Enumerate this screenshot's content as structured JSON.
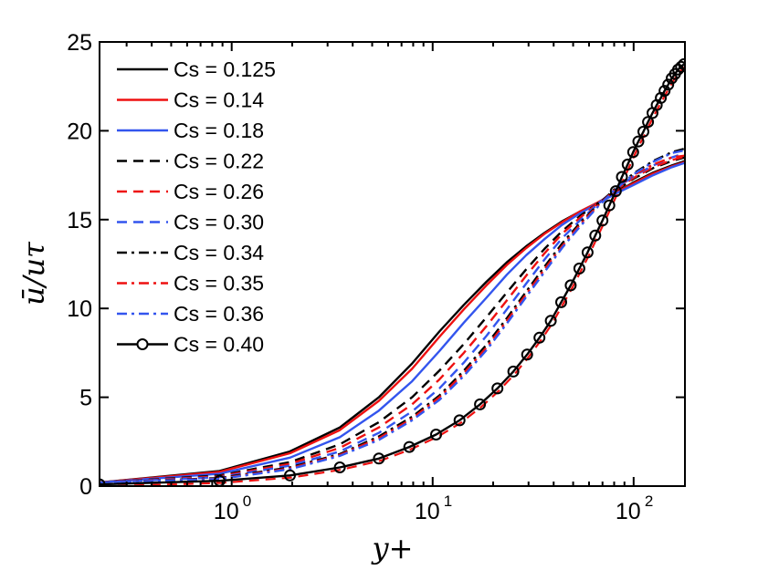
{
  "chart_data": {
    "type": "line",
    "title": "",
    "xlabel": "y+",
    "ylabel": "ū/uτ",
    "x_scale": "log",
    "xlim": [
      0.22,
      180
    ],
    "ylim": [
      0,
      25
    ],
    "yticks": [
      "0",
      "5",
      "10",
      "15",
      "20",
      "25"
    ],
    "xticks": [
      {
        "value": 1,
        "base": "10",
        "exp": "0"
      },
      {
        "value": 10,
        "base": "10",
        "exp": "1"
      },
      {
        "value": 100,
        "base": "10",
        "exp": "2"
      }
    ],
    "grid": false,
    "legend_position": "top-left",
    "series": [
      {
        "name": "Cs = 0.125",
        "color": "#000000",
        "style": "solid",
        "marker": "none",
        "x": [
          0.22,
          0.87,
          1.95,
          3.45,
          5.4,
          7.9,
          10.8,
          14.3,
          18.5,
          23.4,
          29.2,
          36,
          44,
          54,
          66,
          81,
          100,
          125,
          155,
          180
        ],
        "y": [
          0.2,
          0.85,
          1.95,
          3.3,
          5.0,
          6.9,
          8.7,
          10.2,
          11.5,
          12.6,
          13.5,
          14.25,
          14.9,
          15.45,
          15.95,
          16.5,
          17.1,
          17.65,
          18.05,
          18.3
        ]
      },
      {
        "name": "Cs = 0.14",
        "color": "#ee1111",
        "style": "solid",
        "marker": "none",
        "x": [
          0.22,
          0.87,
          1.95,
          3.45,
          5.4,
          7.9,
          10.8,
          14.3,
          18.5,
          23.4,
          29.2,
          36,
          44,
          54,
          66,
          81,
          100,
          125,
          155,
          180
        ],
        "y": [
          0.2,
          0.8,
          1.85,
          3.15,
          4.8,
          6.6,
          8.4,
          9.95,
          11.3,
          12.45,
          13.4,
          14.2,
          14.85,
          15.45,
          15.95,
          16.5,
          17.05,
          17.6,
          18.0,
          18.25
        ]
      },
      {
        "name": "Cs = 0.18",
        "color": "#3355ee",
        "style": "solid",
        "marker": "none",
        "x": [
          0.22,
          0.87,
          1.95,
          3.45,
          5.4,
          7.9,
          10.8,
          14.3,
          18.5,
          23.4,
          29.2,
          36,
          44,
          54,
          66,
          81,
          100,
          125,
          155,
          180
        ],
        "y": [
          0.2,
          0.7,
          1.6,
          2.75,
          4.25,
          5.9,
          7.6,
          9.2,
          10.6,
          11.9,
          13.0,
          13.9,
          14.7,
          15.35,
          15.9,
          16.45,
          16.95,
          17.5,
          17.95,
          18.2
        ]
      },
      {
        "name": "Cs = 0.22",
        "color": "#000000",
        "style": "dash",
        "marker": "none",
        "x": [
          0.22,
          0.87,
          1.95,
          3.45,
          5.4,
          7.9,
          10.8,
          14.3,
          18.5,
          23.4,
          29.2,
          36,
          44,
          54,
          66,
          81,
          100,
          125,
          155,
          180
        ],
        "y": [
          0.2,
          0.6,
          1.35,
          2.35,
          3.6,
          5.0,
          6.5,
          8.0,
          9.5,
          10.9,
          12.2,
          13.35,
          14.35,
          15.2,
          15.9,
          16.6,
          17.3,
          17.9,
          18.3,
          18.5
        ]
      },
      {
        "name": "Cs = 0.26",
        "color": "#ee1111",
        "style": "dash",
        "marker": "none",
        "x": [
          0.22,
          0.87,
          1.95,
          3.45,
          5.4,
          7.9,
          10.8,
          14.3,
          18.5,
          23.4,
          29.2,
          36,
          44,
          54,
          66,
          81,
          100,
          125,
          155,
          180
        ],
        "y": [
          0.2,
          0.55,
          1.25,
          2.15,
          3.3,
          4.6,
          6.0,
          7.5,
          9.0,
          10.45,
          11.85,
          13.1,
          14.2,
          15.1,
          15.9,
          16.65,
          17.35,
          17.95,
          18.35,
          18.55
        ]
      },
      {
        "name": "Cs = 0.30",
        "color": "#3355ee",
        "style": "dash",
        "marker": "none",
        "x": [
          0.22,
          0.87,
          1.95,
          3.45,
          5.4,
          7.9,
          10.8,
          14.3,
          18.5,
          23.4,
          29.2,
          36,
          44,
          54,
          66,
          81,
          100,
          125,
          155,
          180
        ],
        "y": [
          0.2,
          0.5,
          1.15,
          1.95,
          3.0,
          4.2,
          5.5,
          6.95,
          8.45,
          9.95,
          11.4,
          12.75,
          13.95,
          14.95,
          15.85,
          16.7,
          17.45,
          18.05,
          18.5,
          18.75
        ]
      },
      {
        "name": "Cs = 0.34",
        "color": "#000000",
        "style": "dashdot",
        "marker": "none",
        "x": [
          0.22,
          0.87,
          1.95,
          3.45,
          5.4,
          7.9,
          10.8,
          14.3,
          18.5,
          23.4,
          29.2,
          36,
          44,
          54,
          66,
          81,
          100,
          125,
          155,
          180
        ],
        "y": [
          0.2,
          0.45,
          1.05,
          1.8,
          2.8,
          3.9,
          5.1,
          6.5,
          7.95,
          9.45,
          10.95,
          12.35,
          13.65,
          14.8,
          15.8,
          16.75,
          17.6,
          18.3,
          18.8,
          19.0
        ]
      },
      {
        "name": "Cs = 0.35",
        "color": "#ee1111",
        "style": "dashdot",
        "marker": "none",
        "x": [
          0.22,
          0.87,
          1.95,
          3.45,
          5.4,
          7.9,
          10.8,
          14.3,
          18.5,
          23.4,
          29.2,
          36,
          44,
          54,
          66,
          81,
          100,
          125,
          155,
          180
        ],
        "y": [
          0.2,
          0.42,
          1.0,
          1.75,
          2.7,
          3.8,
          5.0,
          6.35,
          7.8,
          9.3,
          10.8,
          12.2,
          13.5,
          14.7,
          15.75,
          16.7,
          17.5,
          18.1,
          18.5,
          18.6
        ]
      },
      {
        "name": "Cs = 0.36",
        "color": "#3355ee",
        "style": "dashdot",
        "marker": "none",
        "x": [
          0.22,
          0.87,
          1.95,
          3.45,
          5.4,
          7.9,
          10.8,
          14.3,
          18.5,
          23.4,
          29.2,
          36,
          44,
          54,
          66,
          81,
          100,
          125,
          155,
          180
        ],
        "y": [
          0.2,
          0.4,
          0.95,
          1.7,
          2.6,
          3.7,
          4.85,
          6.2,
          7.65,
          9.15,
          10.65,
          12.05,
          13.4,
          14.6,
          15.7,
          16.7,
          17.55,
          18.25,
          18.75,
          18.9
        ]
      },
      {
        "name": "Cs = 0.40",
        "color": "#000000",
        "style": "solid",
        "marker": "circle",
        "x": [
          0.22,
          0.87,
          1.95,
          3.45,
          5.4,
          7.65,
          10.4,
          13.6,
          17.2,
          21,
          25.2,
          29.5,
          34,
          38.7,
          43.6,
          48.6,
          53.7,
          59,
          64.4,
          70,
          75.7,
          81.5,
          87.4,
          93.4,
          99.5,
          105.6,
          111.8,
          118,
          124.2,
          130.3,
          136.5,
          142.6,
          148.7,
          154.7,
          160.6,
          166.5,
          172.3,
          178
        ],
        "y": [
          0.1,
          0.3,
          0.6,
          1.05,
          1.55,
          2.2,
          2.9,
          3.7,
          4.6,
          5.5,
          6.45,
          7.4,
          8.35,
          9.3,
          10.35,
          11.3,
          12.25,
          13.15,
          14.1,
          14.95,
          15.8,
          16.6,
          17.4,
          18.1,
          18.8,
          19.4,
          19.95,
          20.5,
          21.0,
          21.45,
          21.85,
          22.25,
          22.6,
          22.95,
          23.2,
          23.45,
          23.6,
          23.75
        ]
      }
    ],
    "legend_extra_line": {
      "color": "#ee1111",
      "style": "dash"
    }
  }
}
